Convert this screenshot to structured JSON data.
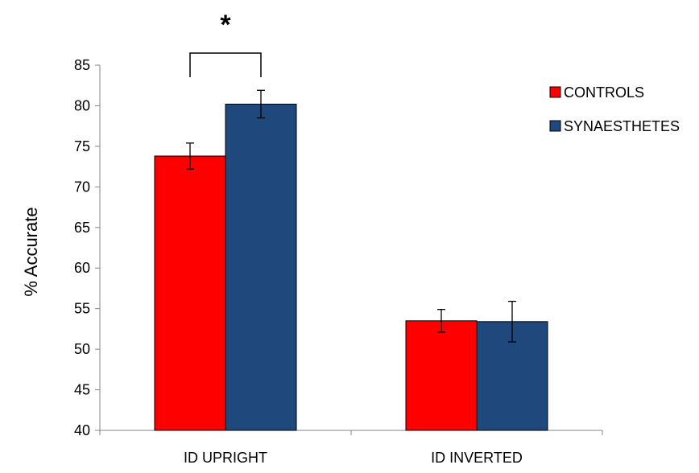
{
  "chart_data": {
    "type": "bar",
    "categories": [
      "ID UPRIGHT",
      "ID INVERTED"
    ],
    "series": [
      {
        "name": "CONTROLS",
        "color": "#ff0000",
        "values": [
          73.8,
          53.5
        ],
        "error": [
          1.6,
          1.4
        ]
      },
      {
        "name": "SYNAESTHETES",
        "color": "#1f497d",
        "values": [
          80.2,
          53.4
        ],
        "error": [
          1.7,
          2.5
        ]
      }
    ],
    "ylabel": "% Accurate",
    "xlabel": "",
    "ylim": [
      40,
      85
    ],
    "yticks": [
      40,
      45,
      50,
      55,
      60,
      65,
      70,
      75,
      80,
      85
    ],
    "grid": false,
    "legend_position": "top-right",
    "annotations": [
      {
        "text": "*",
        "category_index": 0,
        "type": "significance-bracket"
      }
    ]
  }
}
